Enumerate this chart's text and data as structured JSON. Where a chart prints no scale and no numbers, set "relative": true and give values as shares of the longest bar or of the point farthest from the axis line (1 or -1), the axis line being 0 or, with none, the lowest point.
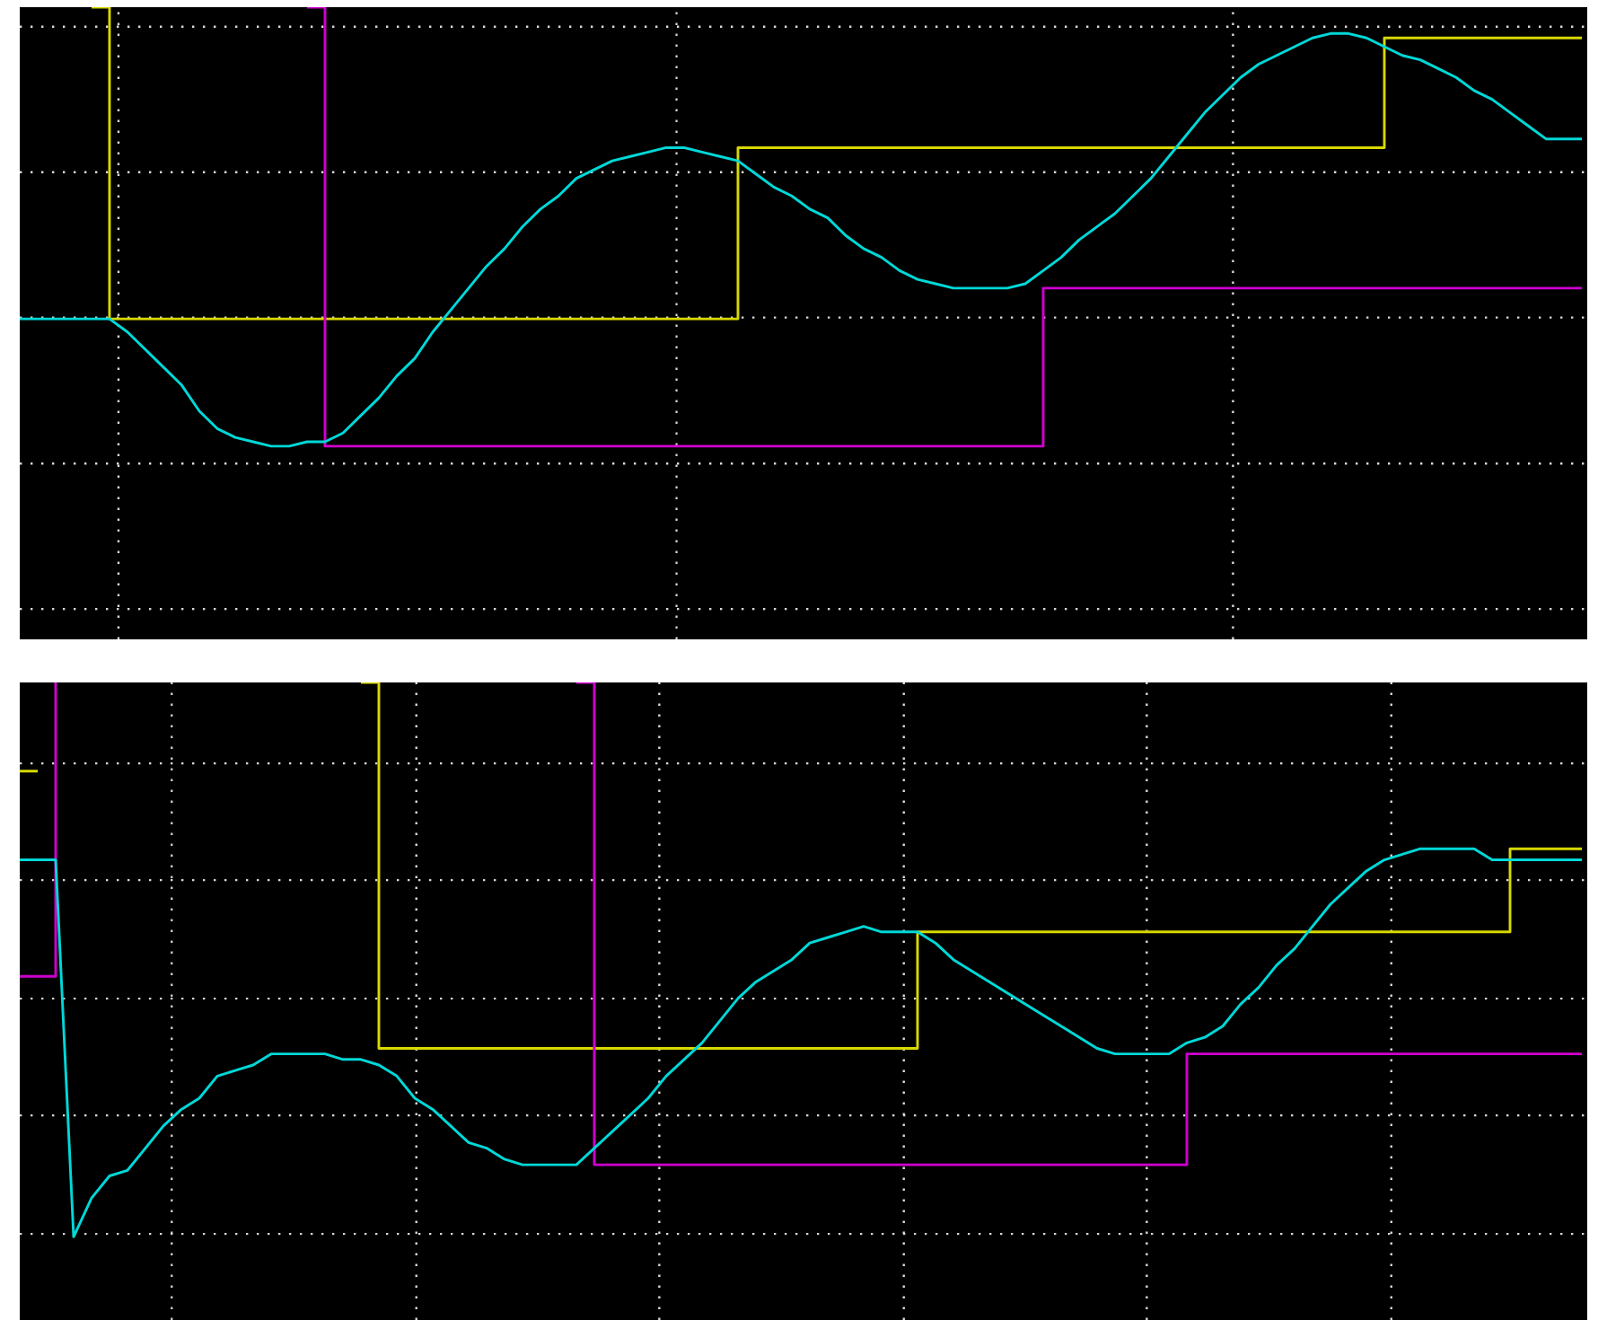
{
  "chart_data": [
    {
      "type": "line",
      "relative": true,
      "grid": true,
      "categories": [
        null,
        null,
        null,
        null,
        null,
        null,
        null,
        null,
        null,
        null,
        null,
        null,
        null,
        null,
        null,
        null,
        null,
        null,
        null,
        null,
        null,
        null,
        null,
        null,
        null,
        null,
        null,
        null,
        null,
        null,
        null,
        null,
        null,
        null,
        null,
        null,
        null,
        null,
        null,
        null,
        null,
        null,
        null,
        null,
        null,
        null,
        null,
        null,
        null,
        null,
        null,
        null,
        null,
        null,
        null,
        null,
        null,
        null,
        null,
        null,
        null,
        null,
        null,
        null,
        null,
        null,
        null,
        null,
        null,
        null,
        null,
        null,
        null,
        null,
        null,
        null,
        null,
        null,
        null,
        null,
        null,
        null,
        null,
        null,
        null,
        null,
        null,
        null
      ],
      "series": [
        {
          "type": "step",
          "color": "#d8d800",
          "values": [
            null,
            null,
            null,
            null,
            1,
            0.29,
            0.29,
            0.29,
            0.29,
            0.29,
            0.29,
            0.29,
            0.29,
            0.29,
            0.29,
            0.29,
            0.29,
            0.29,
            0.29,
            0.29,
            0.29,
            0.29,
            0.29,
            0.29,
            0.29,
            0.29,
            0.29,
            0.29,
            0.29,
            0.29,
            0.29,
            0.29,
            0.29,
            0.29,
            0.29,
            0.29,
            0.29,
            0.29,
            0.29,
            0.29,
            0.68,
            0.68,
            0.68,
            0.68,
            0.68,
            0.68,
            0.68,
            0.68,
            0.68,
            0.68,
            0.68,
            0.68,
            0.68,
            0.68,
            0.68,
            0.68,
            0.68,
            0.68,
            0.68,
            0.68,
            0.68,
            0.68,
            0.68,
            0.68,
            0.68,
            0.68,
            0.68,
            0.68,
            0.68,
            0.68,
            0.68,
            0.68,
            0.68,
            0.68,
            0.68,
            0.68,
            0.93,
            0.93,
            0.93,
            0.93,
            0.93,
            0.93,
            0.93,
            0.93,
            0.93,
            0.93,
            0.93,
            0.93
          ]
        },
        {
          "type": "step",
          "color": "#d000d0",
          "values": [
            null,
            null,
            null,
            null,
            null,
            null,
            null,
            null,
            null,
            null,
            null,
            null,
            null,
            null,
            null,
            null,
            1,
            0,
            0,
            0,
            0,
            0,
            0,
            0,
            0,
            0,
            0,
            0,
            0,
            0,
            0,
            0,
            0,
            0,
            0,
            0,
            0,
            0,
            0,
            0,
            0,
            0,
            0,
            0,
            0,
            0,
            0,
            0,
            0,
            0,
            0,
            0,
            0,
            0,
            0,
            0,
            0,
            0.36,
            0.36,
            0.36,
            0.36,
            0.36,
            0.36,
            0.36,
            0.36,
            0.36,
            0.36,
            0.36,
            0.36,
            0.36,
            0.36,
            0.36,
            0.36,
            0.36,
            0.36,
            0.36,
            0.36,
            0.36,
            0.36,
            0.36,
            0.36,
            0.36,
            0.36,
            0.36,
            0.36,
            0.36,
            0.36,
            0.36
          ]
        },
        {
          "type": "line",
          "color": "#00d8d8",
          "values": [
            0.29,
            0.29,
            0.29,
            0.29,
            0.29,
            0.29,
            0.26,
            0.22,
            0.18,
            0.14,
            0.08,
            0.04,
            0.02,
            0.01,
            0,
            0,
            0.01,
            0.01,
            0.03,
            0.07,
            0.11,
            0.16,
            0.2,
            0.26,
            0.31,
            0.36,
            0.41,
            0.45,
            0.5,
            0.54,
            0.57,
            0.61,
            0.63,
            0.65,
            0.66,
            0.67,
            0.68,
            0.68,
            0.67,
            0.66,
            0.65,
            0.62,
            0.59,
            0.57,
            0.54,
            0.52,
            0.48,
            0.45,
            0.43,
            0.4,
            0.38,
            0.37,
            0.36,
            0.36,
            0.36,
            0.36,
            0.37,
            0.4,
            0.43,
            0.47,
            0.5,
            0.53,
            0.57,
            0.61,
            0.66,
            0.71,
            0.76,
            0.8,
            0.84,
            0.87,
            0.89,
            0.91,
            0.93,
            0.94,
            0.94,
            0.93,
            0.91,
            0.89,
            0.88,
            0.86,
            0.84,
            0.81,
            0.79,
            0.76,
            0.73,
            0.7,
            0.7,
            0.7
          ]
        }
      ]
    },
    {
      "type": "line",
      "relative": true,
      "grid": true,
      "categories": [
        null,
        null,
        null,
        null,
        null,
        null,
        null,
        null,
        null,
        null,
        null,
        null,
        null,
        null,
        null,
        null,
        null,
        null,
        null,
        null,
        null,
        null,
        null,
        null,
        null,
        null,
        null,
        null,
        null,
        null,
        null,
        null,
        null,
        null,
        null,
        null,
        null,
        null,
        null,
        null,
        null,
        null,
        null,
        null,
        null,
        null,
        null,
        null,
        null,
        null,
        null,
        null,
        null,
        null,
        null,
        null,
        null,
        null,
        null,
        null,
        null,
        null,
        null,
        null,
        null,
        null,
        null,
        null,
        null,
        null,
        null,
        null,
        null,
        null,
        null,
        null,
        null,
        null,
        null,
        null,
        null,
        null,
        null,
        null,
        null,
        null,
        null,
        null
      ],
      "series": [
        {
          "type": "step",
          "color": "#d8d800",
          "values": [
            0.84,
            0.84,
            null,
            null,
            null,
            null,
            null,
            null,
            null,
            null,
            null,
            null,
            null,
            null,
            null,
            null,
            null,
            null,
            null,
            1,
            0.34,
            0.34,
            0.34,
            0.34,
            0.34,
            0.34,
            0.34,
            0.34,
            0.34,
            0.34,
            0.34,
            0.34,
            0.34,
            0.34,
            0.34,
            0.34,
            0.34,
            0.34,
            0.34,
            0.34,
            0.34,
            0.34,
            0.34,
            0.34,
            0.34,
            0.34,
            0.34,
            0.34,
            0.34,
            0.34,
            0.55,
            0.55,
            0.55,
            0.55,
            0.55,
            0.55,
            0.55,
            0.55,
            0.55,
            0.55,
            0.55,
            0.55,
            0.55,
            0.55,
            0.55,
            0.55,
            0.55,
            0.55,
            0.55,
            0.55,
            0.55,
            0.55,
            0.55,
            0.55,
            0.55,
            0.55,
            0.55,
            0.55,
            0.55,
            0.55,
            0.55,
            0.55,
            0.55,
            0.7,
            0.7,
            0.7,
            0.7,
            0.7
          ]
        },
        {
          "type": "step",
          "color": "#d000d0",
          "values": [
            0.47,
            0.47,
            1,
            null,
            null,
            null,
            null,
            null,
            null,
            null,
            null,
            null,
            null,
            null,
            null,
            null,
            null,
            null,
            null,
            null,
            null,
            null,
            null,
            null,
            null,
            null,
            null,
            null,
            null,
            null,
            null,
            1,
            0.13,
            0.13,
            0.13,
            0.13,
            0.13,
            0.13,
            0.13,
            0.13,
            0.13,
            0.13,
            0.13,
            0.13,
            0.13,
            0.13,
            0.13,
            0.13,
            0.13,
            0.13,
            0.13,
            0.13,
            0.13,
            0.13,
            0.13,
            0.13,
            0.13,
            0.13,
            0.13,
            0.13,
            0.13,
            0.13,
            0.13,
            0.13,
            0.13,
            0.33,
            0.33,
            0.33,
            0.33,
            0.33,
            0.33,
            0.33,
            0.33,
            0.33,
            0.33,
            0.33,
            0.33,
            0.33,
            0.33,
            0.33,
            0.33,
            0.33,
            0.33,
            0.33,
            0.33,
            0.33,
            0.33,
            0.33
          ]
        },
        {
          "type": "line",
          "color": "#00d8d8",
          "values": [
            0.68,
            0.68,
            0.68,
            0,
            0.07,
            0.11,
            0.12,
            0.16,
            0.2,
            0.23,
            0.25,
            0.29,
            0.3,
            0.31,
            0.33,
            0.33,
            0.33,
            0.33,
            0.32,
            0.32,
            0.31,
            0.29,
            0.25,
            0.23,
            0.2,
            0.17,
            0.16,
            0.14,
            0.13,
            0.13,
            0.13,
            0.13,
            0.16,
            0.19,
            0.22,
            0.25,
            0.29,
            0.32,
            0.35,
            0.39,
            0.43,
            0.46,
            0.48,
            0.5,
            0.53,
            0.54,
            0.55,
            0.56,
            0.55,
            0.55,
            0.55,
            0.53,
            0.5,
            0.48,
            0.46,
            0.44,
            0.42,
            0.4,
            0.38,
            0.36,
            0.34,
            0.33,
            0.33,
            0.33,
            0.33,
            0.35,
            0.36,
            0.38,
            0.42,
            0.45,
            0.49,
            0.52,
            0.56,
            0.6,
            0.63,
            0.66,
            0.68,
            0.69,
            0.7,
            0.7,
            0.7,
            0.7,
            0.68,
            0.68,
            0.68,
            0.68,
            0.68,
            0.68
          ]
        }
      ]
    }
  ]
}
